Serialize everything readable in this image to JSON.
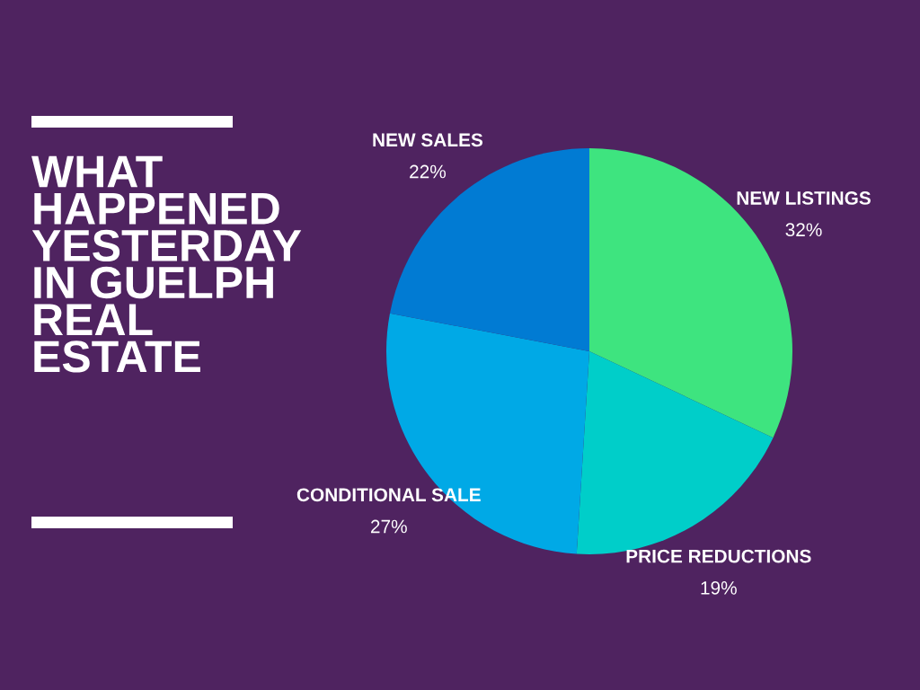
{
  "chart_data": {
    "type": "pie",
    "title": "WHAT\nHAPPENED\nYESTERDAY\nIN GUELPH\nREAL\nESTATE",
    "categories": [
      "NEW LISTINGS",
      "PRICE REDUCTIONS",
      "CONDITIONAL SALE",
      "NEW SALES"
    ],
    "values": [
      32,
      19,
      27,
      22
    ],
    "value_labels": [
      "32%",
      "19%",
      "27%",
      "22%"
    ],
    "colors": [
      "#3ee47f",
      "#00cec9",
      "#00a9e6",
      "#017bd3"
    ],
    "legend": false
  }
}
